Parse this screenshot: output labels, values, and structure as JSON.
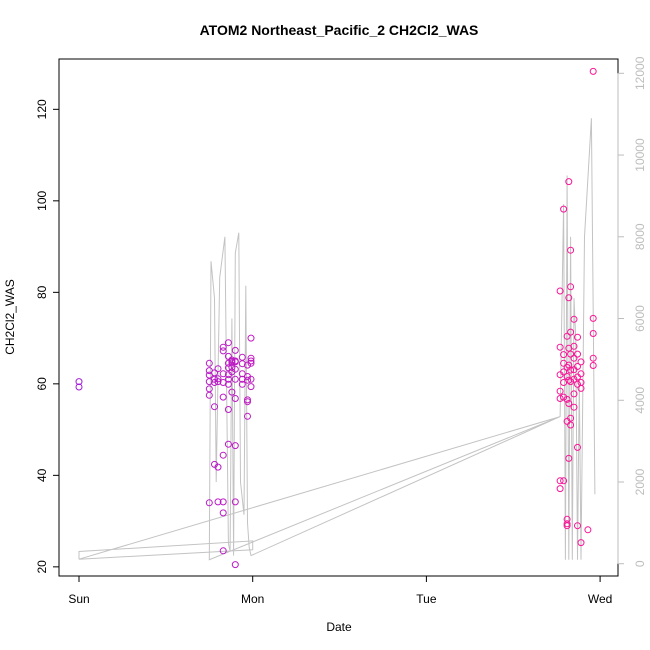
{
  "chart_data": {
    "type": "scatter",
    "title": "ATOM2 Northeast_Pacific_2 CH2Cl2_WAS",
    "xlabel": "Date",
    "ylabel": "CH2Cl2_WAS",
    "x_ticks": [
      "Sun",
      "Mon",
      "Tue",
      "Wed"
    ],
    "x_unit": "days since Sun 00:00",
    "xlim": [
      0,
      3.09
    ],
    "ylim": [
      18,
      131
    ],
    "y_ticks": [
      20,
      40,
      60,
      80,
      100,
      120
    ],
    "y2_ticks": [
      0,
      2000,
      4000,
      6000,
      8000,
      10000,
      12000
    ],
    "y2lim": [
      -300,
      12350
    ],
    "grid": false,
    "colors": {
      "points_start": "#a11ed9",
      "points_end": "#ff1493",
      "altitude_line": "#c3c3c3",
      "secondary_axis": "#bdbdbd"
    },
    "series": [
      {
        "axis": "left",
        "style": "open-circles",
        "points": [
          [
            0.0,
            60.5
          ],
          [
            0.0,
            59.3
          ],
          [
            0.75,
            64.5
          ],
          [
            0.75,
            62.9
          ],
          [
            0.75,
            61.9
          ],
          [
            0.75,
            60.5
          ],
          [
            0.75,
            58.9
          ],
          [
            0.75,
            57.5
          ],
          [
            0.75,
            34.0
          ],
          [
            0.78,
            62.4
          ],
          [
            0.78,
            61.0
          ],
          [
            0.78,
            60.3
          ],
          [
            0.78,
            42.4
          ],
          [
            0.78,
            55.0
          ],
          [
            0.8,
            63.3
          ],
          [
            0.8,
            61.1
          ],
          [
            0.8,
            60.5
          ],
          [
            0.8,
            41.8
          ],
          [
            0.8,
            34.2
          ],
          [
            0.83,
            68.0
          ],
          [
            0.83,
            67.2
          ],
          [
            0.83,
            62.2
          ],
          [
            0.83,
            60.3
          ],
          [
            0.83,
            57.1
          ],
          [
            0.83,
            44.4
          ],
          [
            0.83,
            34.2
          ],
          [
            0.83,
            31.8
          ],
          [
            0.83,
            23.5
          ],
          [
            0.86,
            69.0
          ],
          [
            0.86,
            66.0
          ],
          [
            0.86,
            64.5
          ],
          [
            0.86,
            63.5
          ],
          [
            0.86,
            62.0
          ],
          [
            0.86,
            61.0
          ],
          [
            0.86,
            59.9
          ],
          [
            0.86,
            54.4
          ],
          [
            0.86,
            46.8
          ],
          [
            0.88,
            65.2
          ],
          [
            0.88,
            64.6
          ],
          [
            0.88,
            64.9
          ],
          [
            0.88,
            63.6
          ],
          [
            0.88,
            62.6
          ],
          [
            0.88,
            58.2
          ],
          [
            0.9,
            67.3
          ],
          [
            0.9,
            65.0
          ],
          [
            0.9,
            64.8
          ],
          [
            0.9,
            63.2
          ],
          [
            0.9,
            61.0
          ],
          [
            0.9,
            56.8
          ],
          [
            0.9,
            46.5
          ],
          [
            0.9,
            34.2
          ],
          [
            0.9,
            20.5
          ],
          [
            0.94,
            65.8
          ],
          [
            0.94,
            64.4
          ],
          [
            0.94,
            62.2
          ],
          [
            0.94,
            61.0
          ],
          [
            0.94,
            59.9
          ],
          [
            0.97,
            64.1
          ],
          [
            0.97,
            61.6
          ],
          [
            0.97,
            60.8
          ],
          [
            0.97,
            56.5
          ],
          [
            0.97,
            52.9
          ],
          [
            0.97,
            56.1
          ],
          [
            0.99,
            70.0
          ],
          [
            0.99,
            65.6
          ],
          [
            0.99,
            65.0
          ],
          [
            0.99,
            64.5
          ],
          [
            0.99,
            61.0
          ],
          [
            0.99,
            59.4
          ],
          [
            2.77,
            80.3
          ],
          [
            2.77,
            68.0
          ],
          [
            2.77,
            62.0
          ],
          [
            2.77,
            58.4
          ],
          [
            2.77,
            56.8
          ],
          [
            2.77,
            38.8
          ],
          [
            2.77,
            37.1
          ],
          [
            2.79,
            98.2
          ],
          [
            2.79,
            66.4
          ],
          [
            2.79,
            64.5
          ],
          [
            2.79,
            62.6
          ],
          [
            2.79,
            60.3
          ],
          [
            2.79,
            57.1
          ],
          [
            2.79,
            38.8
          ],
          [
            2.81,
            70.4
          ],
          [
            2.81,
            63.6
          ],
          [
            2.81,
            61.6
          ],
          [
            2.81,
            56.6
          ],
          [
            2.81,
            51.8
          ],
          [
            2.81,
            30.4
          ],
          [
            2.81,
            29.4
          ],
          [
            2.81,
            29.0
          ],
          [
            2.82,
            104.2
          ],
          [
            2.82,
            78.8
          ],
          [
            2.82,
            67.8
          ],
          [
            2.82,
            64.1
          ],
          [
            2.82,
            60.8
          ],
          [
            2.82,
            55.7
          ],
          [
            2.82,
            43.7
          ],
          [
            2.83,
            89.2
          ],
          [
            2.83,
            81.2
          ],
          [
            2.83,
            71.3
          ],
          [
            2.83,
            66.5
          ],
          [
            2.83,
            63.0
          ],
          [
            2.83,
            60.5
          ],
          [
            2.83,
            52.5
          ],
          [
            2.83,
            51.0
          ],
          [
            2.85,
            74.1
          ],
          [
            2.85,
            68.2
          ],
          [
            2.85,
            65.6
          ],
          [
            2.85,
            63.1
          ],
          [
            2.85,
            61.0
          ],
          [
            2.85,
            57.8
          ],
          [
            2.85,
            54.9
          ],
          [
            2.87,
            70.2
          ],
          [
            2.87,
            66.5
          ],
          [
            2.87,
            63.8
          ],
          [
            2.87,
            61.5
          ],
          [
            2.87,
            59.9
          ],
          [
            2.87,
            46.1
          ],
          [
            2.87,
            29.0
          ],
          [
            2.89,
            64.8
          ],
          [
            2.89,
            62.2
          ],
          [
            2.89,
            60.3
          ],
          [
            2.89,
            59.0
          ],
          [
            2.89,
            25.3
          ],
          [
            2.93,
            28.1
          ],
          [
            2.96,
            128.3
          ],
          [
            2.96,
            74.3
          ],
          [
            2.96,
            71.0
          ],
          [
            2.96,
            65.6
          ],
          [
            2.96,
            64.0
          ]
        ]
      },
      {
        "axis": "right",
        "style": "line",
        "points": [
          [
            0.0,
            300
          ],
          [
            0.0,
            110
          ],
          [
            0.0,
            300
          ],
          [
            1.0,
            560
          ],
          [
            1.0,
            340
          ],
          [
            0.0,
            110
          ],
          [
            2.77,
            3600
          ],
          [
            0.75,
            100
          ],
          [
            0.76,
            7400
          ],
          [
            0.78,
            6500
          ],
          [
            0.79,
            2000
          ],
          [
            0.81,
            7000
          ],
          [
            0.84,
            8000
          ],
          [
            0.86,
            500
          ],
          [
            0.87,
            300
          ],
          [
            0.88,
            6000
          ],
          [
            0.89,
            200
          ],
          [
            0.9,
            7600
          ],
          [
            0.92,
            8100
          ],
          [
            0.93,
            2000
          ],
          [
            0.95,
            1200
          ],
          [
            0.96,
            6800
          ],
          [
            0.97,
            1000
          ],
          [
            0.98,
            400
          ],
          [
            0.99,
            200
          ],
          [
            2.77,
            3600
          ],
          [
            2.79,
            8800
          ],
          [
            2.8,
            100
          ],
          [
            2.81,
            9500
          ],
          [
            2.82,
            100
          ],
          [
            2.83,
            8000
          ],
          [
            2.84,
            100
          ],
          [
            2.85,
            6500
          ],
          [
            2.86,
            5500
          ],
          [
            2.87,
            100
          ],
          [
            2.88,
            4500
          ],
          [
            2.89,
            100
          ],
          [
            2.91,
            8000
          ],
          [
            2.95,
            10900
          ],
          [
            2.97,
            1700
          ]
        ]
      }
    ]
  }
}
